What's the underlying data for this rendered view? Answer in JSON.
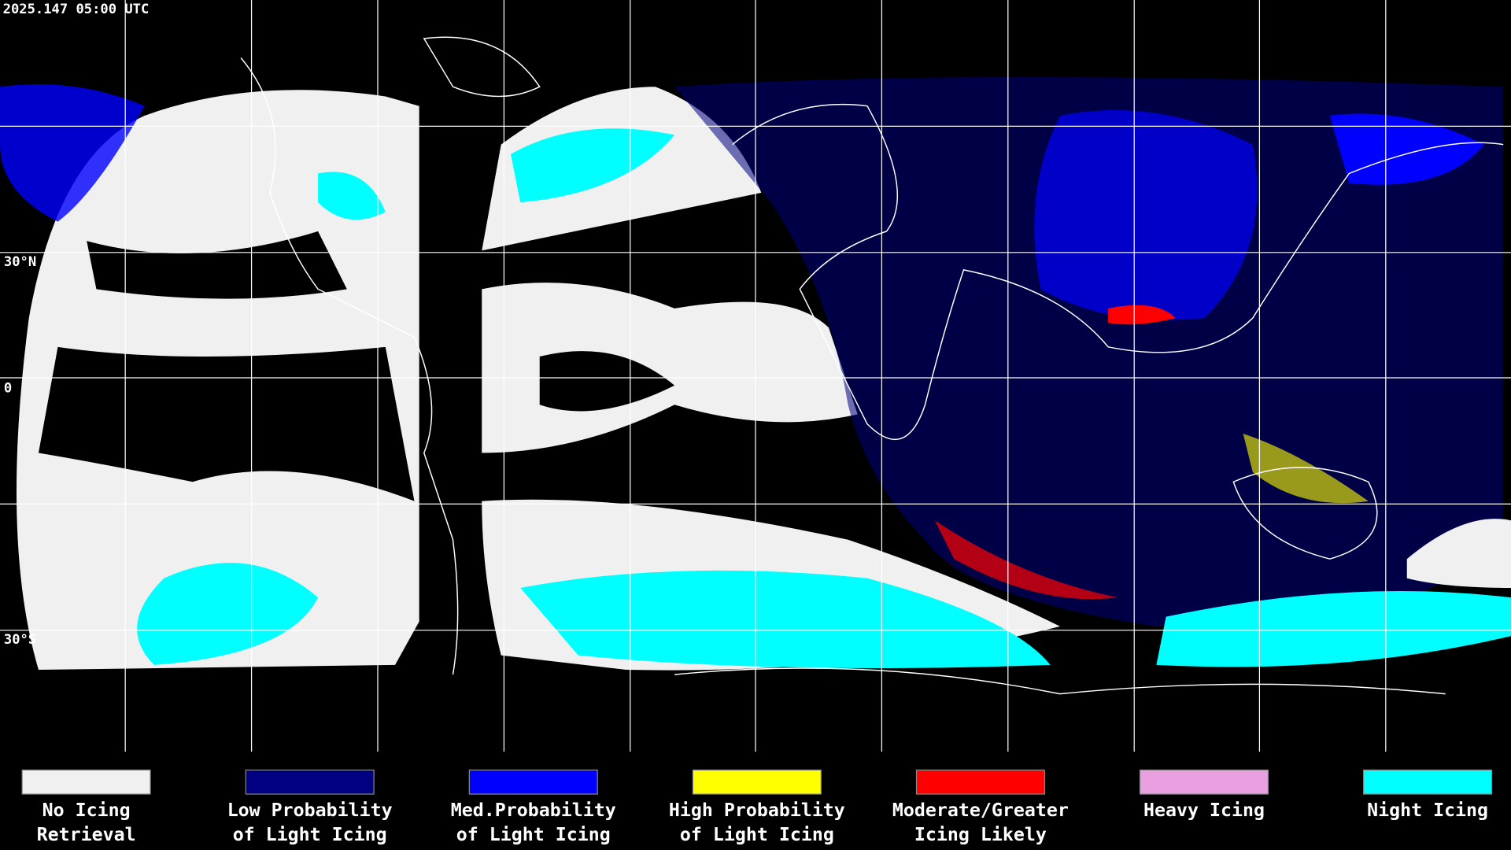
{
  "header": {
    "timestamp": "2025.147 05:00 UTC"
  },
  "map": {
    "latitude_labels": [
      "30°N",
      "0",
      "30°S"
    ]
  },
  "legend": [
    {
      "color": "#f0f0f0",
      "lines": [
        "No Icing",
        "Retrieval"
      ]
    },
    {
      "color": "#000080",
      "lines": [
        "Low Probability",
        "of Light Icing"
      ]
    },
    {
      "color": "#0000ff",
      "lines": [
        "Med.Probability",
        "of Light Icing"
      ]
    },
    {
      "color": "#ffff00",
      "lines": [
        "High Probability",
        "of Light Icing"
      ]
    },
    {
      "color": "#ff0000",
      "lines": [
        "Moderate/Greater",
        "Icing Likely"
      ]
    },
    {
      "color": "#e8a0e0",
      "lines": [
        "Heavy Icing"
      ]
    },
    {
      "color": "#00ffff",
      "lines": [
        "Night Icing"
      ]
    }
  ]
}
